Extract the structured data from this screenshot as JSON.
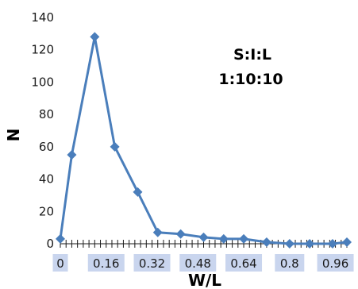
{
  "chart_data": {
    "type": "line",
    "title": "",
    "xlabel": "W/L",
    "ylabel": "N",
    "ylim": [
      0,
      140
    ],
    "yticks": [
      0,
      20,
      40,
      60,
      80,
      100,
      120,
      140
    ],
    "xtick_labels": [
      "0",
      "0.16",
      "0.32",
      "0.48",
      "0.64",
      "0.8",
      "0.96"
    ],
    "xtick_values": [
      0,
      0.16,
      0.32,
      0.48,
      0.64,
      0.8,
      0.96
    ],
    "xlim": [
      0,
      1.0
    ],
    "grid": false,
    "annotation": [
      "S:I:L",
      "1:10:10"
    ],
    "colors": {
      "series": "#4a7ebb",
      "label_highlight": "#c9d5ee"
    },
    "series": [
      {
        "x": [
          0,
          0.04,
          0.12,
          0.19,
          0.27,
          0.34,
          0.42,
          0.5,
          0.57,
          0.64,
          0.72,
          0.8,
          0.87,
          0.95,
          1.0
        ],
        "values": [
          3,
          55,
          128,
          60,
          32,
          7,
          6,
          4,
          3,
          3,
          1,
          0,
          0,
          0,
          1
        ]
      }
    ]
  }
}
